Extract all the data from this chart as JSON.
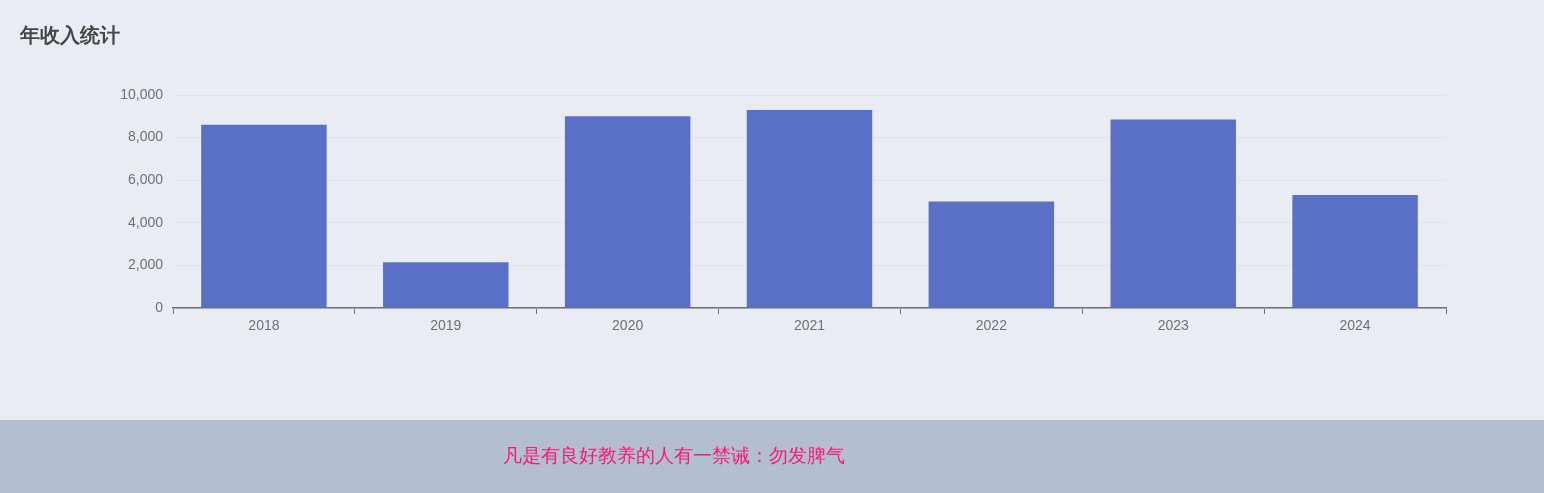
{
  "chart_data": {
    "type": "bar",
    "title": "年收入统计",
    "categories": [
      "2018",
      "2019",
      "2020",
      "2021",
      "2022",
      "2023",
      "2024"
    ],
    "values": [
      8600,
      2150,
      9000,
      9300,
      5000,
      8850,
      5300
    ],
    "color": "#5a70c6",
    "ylim": [
      0,
      10000
    ],
    "yticks": [
      0,
      {
        "value": 2000,
        "label": "2,000"
      },
      {
        "value": 4000,
        "label": "4,000"
      },
      {
        "value": 6000,
        "label": "6,000"
      },
      {
        "value": 8000,
        "label": "8,000"
      },
      {
        "value": 10000,
        "label": "10,000"
      }
    ],
    "grid": "y",
    "annotations": [
      "凡是有良好教养的人有一禁诫：勿发脾气"
    ]
  }
}
